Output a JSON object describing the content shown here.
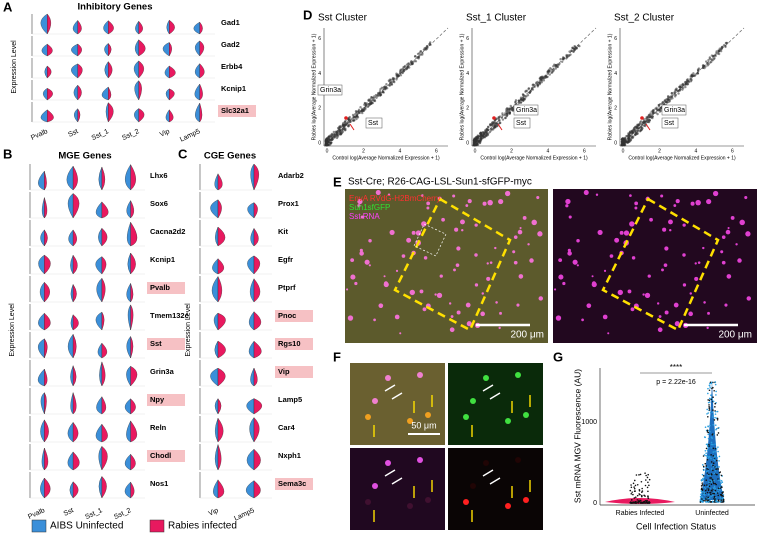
{
  "panels": {
    "A": {
      "label": "A",
      "title": "Inhibitory Genes",
      "y_label": "Expression Level",
      "groups": [
        "Pvalb",
        "Sst",
        "Sst_1",
        "Sst_2",
        "Vip",
        "Lamp5"
      ],
      "genes": [
        {
          "name": "Gad1",
          "highlight": false
        },
        {
          "name": "Gad2",
          "highlight": false
        },
        {
          "name": "Erbb4",
          "highlight": false
        },
        {
          "name": "Kcnip1",
          "highlight": false
        },
        {
          "name": "Slc32a1",
          "highlight": true
        }
      ]
    },
    "B": {
      "label": "B",
      "title": "MGE Genes",
      "y_label": "Expression Level",
      "groups": [
        "Pvalb",
        "Sst",
        "Sst_1",
        "Sst_2"
      ],
      "genes": [
        {
          "name": "Lhx6",
          "highlight": false
        },
        {
          "name": "Sox6",
          "highlight": false
        },
        {
          "name": "Cacna2d2",
          "highlight": false
        },
        {
          "name": "Kcnip1",
          "highlight": false
        },
        {
          "name": "Pvalb",
          "highlight": true
        },
        {
          "name": "Tmem132c",
          "highlight": false
        },
        {
          "name": "Sst",
          "highlight": true
        },
        {
          "name": "Grin3a",
          "highlight": false
        },
        {
          "name": "Npy",
          "highlight": true
        },
        {
          "name": "Reln",
          "highlight": false
        },
        {
          "name": "Chodl",
          "highlight": true
        },
        {
          "name": "Nos1",
          "highlight": false
        }
      ]
    },
    "C": {
      "label": "C",
      "title": "CGE Genes",
      "y_label": "Expression Level",
      "groups": [
        "Vip",
        "Lamp5"
      ],
      "genes": [
        {
          "name": "Adarb2",
          "highlight": false
        },
        {
          "name": "Prox1",
          "highlight": false
        },
        {
          "name": "Kit",
          "highlight": false
        },
        {
          "name": "Egfr",
          "highlight": false
        },
        {
          "name": "Ptprf",
          "highlight": false
        },
        {
          "name": "Pnoc",
          "highlight": true
        },
        {
          "name": "Rgs10",
          "highlight": true
        },
        {
          "name": "Vip",
          "highlight": true
        },
        {
          "name": "Lamp5",
          "highlight": false
        },
        {
          "name": "Car4",
          "highlight": false
        },
        {
          "name": "Nxph1",
          "highlight": false
        },
        {
          "name": "Sema3c",
          "highlight": true
        }
      ]
    },
    "legend": [
      {
        "name": "AIBS Uninfected",
        "color": "#3b8fd9"
      },
      {
        "name": "Rabies infected",
        "color": "#e8195f"
      }
    ],
    "D": {
      "label": "D",
      "x_label": "Control log(Average Normalized Expression + 1)",
      "y_label": "Rabies log(Average Normalized Expression + 1)",
      "ticks": [
        "0",
        "2",
        "4",
        "6"
      ],
      "annotations": [
        "Grin3a",
        "Sst"
      ],
      "plots": [
        "Sst Cluster",
        "Sst_1 Cluster",
        "Sst_2 Cluster"
      ]
    },
    "E": {
      "label": "E",
      "title": "Sst-Cre; R26-CAG-LSL-Sun1-sfGFP-myc",
      "channels": [
        {
          "name": "EnvA RVdG-H2BmCherry",
          "color": "#ff3030"
        },
        {
          "name": "Sun1sfGFP",
          "color": "#30e030"
        },
        {
          "name": "Sst RNA",
          "color": "#ff40ff"
        }
      ],
      "scale_bar": "200 μm"
    },
    "F": {
      "label": "F",
      "scale_bar": "50 μm"
    },
    "G": {
      "label": "G",
      "y_label": "Sst mRNA MGV Fluorescence (AU)",
      "x_label": "Cell Infection Status",
      "categories": [
        "Rabies Infected",
        "Uninfected"
      ],
      "yticks": [
        "0",
        "1000"
      ],
      "significance": "****",
      "p_value": "p = 2.22e-16"
    }
  }
}
